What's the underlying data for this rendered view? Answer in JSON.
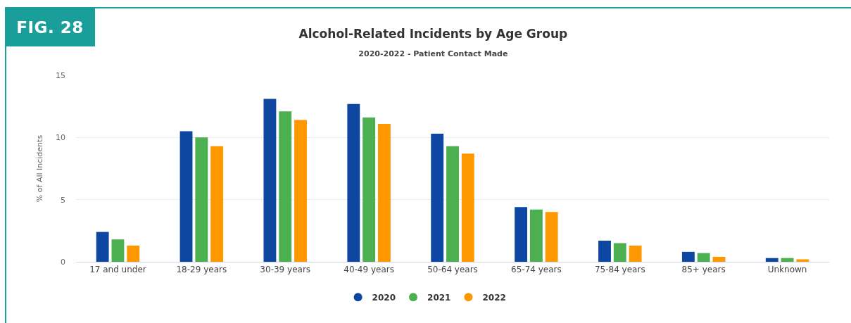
{
  "chart_data": {
    "type": "bar",
    "title": "Alcohol-Related Incidents by Age Group",
    "subtitle": "2020-2022 - Patient Contact Made",
    "ylabel": "% of All Incidents",
    "annotations": [
      "FIG. 28"
    ],
    "categories": [
      "17 and under",
      "18-29 years",
      "30-39 years",
      "40-49 years",
      "50-64 years",
      "65-74 years",
      "75-84 years",
      "85+ years",
      "Unknown"
    ],
    "series": [
      {
        "name": "2020",
        "color": "#0d47a1",
        "values": [
          2.4,
          10.5,
          13.1,
          12.7,
          10.3,
          4.4,
          1.7,
          0.8,
          0.3
        ]
      },
      {
        "name": "2021",
        "color": "#4caf50",
        "values": [
          1.8,
          10.0,
          12.1,
          11.6,
          9.3,
          4.2,
          1.5,
          0.7,
          0.3
        ]
      },
      {
        "name": "2022",
        "color": "#ff9800",
        "values": [
          1.3,
          9.3,
          11.4,
          11.1,
          8.7,
          4.0,
          1.3,
          0.4,
          0.2
        ]
      }
    ],
    "ylim": [
      0,
      15
    ],
    "yticks": [
      0,
      5,
      10,
      15
    ],
    "grid": "y",
    "legend": "bottom"
  }
}
